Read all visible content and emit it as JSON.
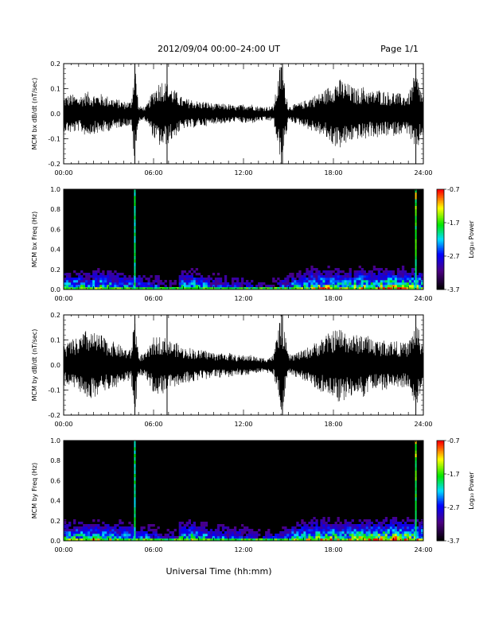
{
  "header": {
    "title": "2012/09/04  00:00–24:00 UT",
    "page": "Page 1/1"
  },
  "footer": {
    "xlabel": "Universal Time (hh:mm)"
  },
  "colorbar_label": "Log₁₀ Power",
  "chart_data": [
    {
      "type": "line",
      "ylabel": "MCM bx dB/dt (nT/sec)",
      "xlim": [
        0,
        24
      ],
      "ylim": [
        -0.2,
        0.2
      ],
      "x_ticklabels": [
        "00:00",
        "06:00",
        "12:00",
        "18:00",
        "24:00"
      ],
      "y_ticklabels": [
        "0.2",
        "0.1",
        "0.0",
        "-0.1",
        "-0.2"
      ],
      "grid": false,
      "color": "#000000",
      "series": [
        {
          "x": [
            0,
            0.5,
            1,
            1.5,
            2,
            2.5,
            3,
            3.5,
            4,
            4.5,
            4.75,
            5,
            5.5,
            6,
            6.5,
            7,
            7.5,
            8,
            8.5,
            9,
            9.5,
            10,
            10.5,
            11,
            11.5,
            12,
            12.5,
            13,
            13.5,
            14,
            14.5,
            15,
            15.5,
            16,
            16.5,
            17,
            17.5,
            18,
            18.5,
            19,
            19.5,
            20,
            20.5,
            21,
            21.5,
            22,
            22.5,
            23,
            23.5,
            24
          ],
          "y": [
            0.07,
            0.08,
            0.07,
            0.09,
            0.08,
            0.08,
            0.07,
            0.06,
            0.05,
            0.05,
            0.22,
            0.03,
            0.03,
            0.1,
            0.14,
            0.12,
            0.09,
            0.06,
            0.06,
            0.05,
            0.05,
            0.04,
            0.04,
            0.04,
            0.03,
            0.04,
            0.04,
            0.03,
            0.03,
            0.03,
            0.22,
            0.03,
            0.04,
            0.05,
            0.07,
            0.08,
            0.1,
            0.13,
            0.14,
            0.12,
            0.1,
            0.11,
            0.09,
            0.1,
            0.09,
            0.09,
            0.08,
            0.08,
            0.17,
            0.07
          ]
        }
      ],
      "spikes": [
        4.75,
        6.9,
        14.6,
        23.5
      ]
    },
    {
      "type": "heatmap",
      "ylabel": "MCM bx Freq (Hz)",
      "xlim": [
        0,
        24
      ],
      "ylim": [
        0,
        1.0
      ],
      "x_ticklabels": [
        "00:00",
        "06:00",
        "12:00",
        "18:00",
        "24:00"
      ],
      "y_ticklabels": [
        "1.0",
        "0.8",
        "0.6",
        "0.4",
        "0.2",
        "0.0"
      ],
      "colorbar": {
        "min": -3.7,
        "max": -0.7,
        "ticklabels": [
          "-0.7",
          "-1.7",
          "-2.7",
          "-3.7"
        ]
      },
      "activity": [
        0.55,
        0.6,
        0.55,
        0.65,
        0.6,
        0.55,
        0.5,
        0.45,
        0.4,
        0.4,
        0.25,
        0.25,
        0.55,
        0.6,
        0.5,
        0.4,
        0.4,
        0.35,
        0.35,
        0.3,
        0.25,
        0.25,
        0.3,
        0.4,
        0.55,
        0.6,
        0.7,
        0.75,
        0.7,
        0.65,
        0.7,
        0.75,
        0.7,
        0.75,
        0.8,
        0.75,
        0.7,
        0.7
      ],
      "vertical_lines": [
        4.75,
        23.5
      ]
    },
    {
      "type": "line",
      "ylabel": "MCM by dB/dt (nT/sec)",
      "xlim": [
        0,
        24
      ],
      "ylim": [
        -0.2,
        0.2
      ],
      "x_ticklabels": [
        "00:00",
        "06:00",
        "12:00",
        "18:00",
        "24:00"
      ],
      "y_ticklabels": [
        "0.2",
        "0.1",
        "0.0",
        "-0.1",
        "-0.2"
      ],
      "grid": false,
      "color": "#000000",
      "series": [
        {
          "x": [
            0,
            0.5,
            1,
            1.5,
            2,
            2.5,
            3,
            3.5,
            4,
            4.5,
            4.75,
            5,
            5.5,
            6,
            6.5,
            7,
            7.5,
            8,
            8.5,
            9,
            9.5,
            10,
            10.5,
            11,
            11.5,
            12,
            12.5,
            13,
            13.5,
            14,
            14.5,
            15,
            15.5,
            16,
            16.5,
            17,
            17.5,
            18,
            18.5,
            19,
            19.5,
            20,
            20.5,
            21,
            21.5,
            22,
            22.5,
            23,
            23.5,
            24
          ],
          "y": [
            0.08,
            0.1,
            0.11,
            0.14,
            0.13,
            0.12,
            0.1,
            0.09,
            0.07,
            0.06,
            0.22,
            0.04,
            0.05,
            0.11,
            0.12,
            0.1,
            0.09,
            0.07,
            0.07,
            0.06,
            0.06,
            0.05,
            0.05,
            0.05,
            0.04,
            0.04,
            0.04,
            0.03,
            0.03,
            0.04,
            0.22,
            0.04,
            0.05,
            0.06,
            0.08,
            0.1,
            0.12,
            0.14,
            0.15,
            0.13,
            0.12,
            0.13,
            0.11,
            0.1,
            0.1,
            0.1,
            0.09,
            0.09,
            0.18,
            0.08
          ]
        }
      ],
      "spikes": [
        4.75,
        6.9,
        14.6,
        23.5
      ]
    },
    {
      "type": "heatmap",
      "ylabel": "MCM by Freq (Hz)",
      "xlim": [
        0,
        24
      ],
      "ylim": [
        0,
        1.0
      ],
      "x_ticklabels": [
        "00:00",
        "06:00",
        "12:00",
        "18:00",
        "24:00"
      ],
      "y_ticklabels": [
        "1.0",
        "0.8",
        "0.6",
        "0.4",
        "0.2",
        "0.0"
      ],
      "colorbar": {
        "min": -3.7,
        "max": -0.7,
        "ticklabels": [
          "-0.7",
          "-1.7",
          "-2.7",
          "-3.7"
        ]
      },
      "activity": [
        0.6,
        0.65,
        0.6,
        0.7,
        0.65,
        0.6,
        0.55,
        0.5,
        0.45,
        0.4,
        0.3,
        0.3,
        0.6,
        0.65,
        0.55,
        0.45,
        0.45,
        0.4,
        0.4,
        0.35,
        0.3,
        0.3,
        0.35,
        0.45,
        0.6,
        0.65,
        0.75,
        0.8,
        0.75,
        0.7,
        0.75,
        0.8,
        0.75,
        0.8,
        0.85,
        0.8,
        0.75,
        0.75
      ],
      "vertical_lines": [
        4.75,
        23.5
      ]
    }
  ]
}
